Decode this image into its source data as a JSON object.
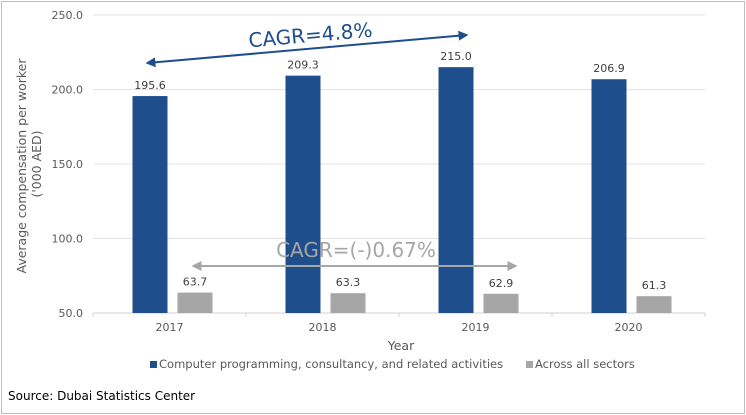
{
  "chart_data": {
    "type": "bar",
    "title": "",
    "xlabel": "Year",
    "ylabel": "Average compensation per worker ('000 AED)",
    "ylabel_lines": [
      "Average compensation per worker",
      "('000 AED)"
    ],
    "categories": [
      "2017",
      "2018",
      "2019",
      "2020"
    ],
    "ylim": [
      50,
      250
    ],
    "yticks": [
      50,
      100,
      150,
      200,
      250
    ],
    "ytick_labels": [
      "50.0",
      "100.0",
      "150.0",
      "200.0",
      "250.0"
    ],
    "grid": true,
    "legend_position": "bottom",
    "series": [
      {
        "name": "Computer programming, consultancy, and related activities",
        "color": "#1f4e8c",
        "values": [
          195.6,
          209.3,
          215.0,
          206.9
        ],
        "labels": [
          "195.6",
          "209.3",
          "215.0",
          "206.9"
        ]
      },
      {
        "name": "Across all sectors",
        "color": "#a6a6a6",
        "values": [
          63.7,
          63.3,
          62.9,
          61.3
        ],
        "labels": [
          "63.7",
          "63.3",
          "62.9",
          "61.3"
        ]
      }
    ],
    "annotations": [
      {
        "text": "CAGR=4.8%",
        "color": "#1f4e8c",
        "series": 0,
        "from": "2017",
        "to": "2019"
      },
      {
        "text": "CAGR=(-)0.67%",
        "color": "#a6a6a6",
        "series": 1,
        "from": "2017",
        "to": "2019"
      }
    ]
  },
  "source": "Source: Dubai Statistics Center"
}
